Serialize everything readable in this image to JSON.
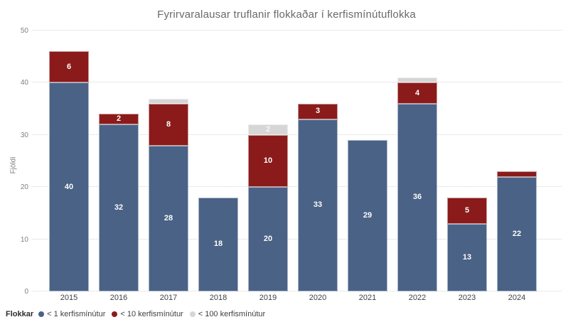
{
  "chart_data": {
    "type": "bar",
    "stacked": true,
    "title": "Fyrirvaralausar truflanir flokkaðar í kerfismínútuflokka",
    "xlabel": "",
    "ylabel": "Fjöldi",
    "ylim": [
      0,
      50
    ],
    "yticks": [
      0,
      10,
      20,
      30,
      40,
      50
    ],
    "grid": "dotted-horizontal",
    "categories": [
      "2015",
      "2016",
      "2017",
      "2018",
      "2019",
      "2020",
      "2021",
      "2022",
      "2023",
      "2024"
    ],
    "series": [
      {
        "name": "< 1 kerfismínútur",
        "color": "#4a6286",
        "values": [
          40,
          32,
          28,
          18,
          20,
          33,
          29,
          36,
          13,
          22
        ]
      },
      {
        "name": "< 10 kerfismínútur",
        "color": "#8b1b1b",
        "values": [
          6,
          2,
          8,
          0,
          10,
          3,
          0,
          4,
          5,
          1
        ]
      },
      {
        "name": "< 100 kerfismínútur",
        "color": "#d6d6d6",
        "values": [
          0,
          0,
          1,
          0,
          2,
          0,
          0,
          1,
          0,
          0
        ]
      }
    ],
    "totals": [
      46,
      34,
      37,
      18,
      32,
      36,
      29,
      41,
      18,
      23
    ],
    "data_label_min": 2,
    "data_label_color": "#ffffff",
    "legend_title": "Flokkar",
    "legend_position": "bottom-left"
  },
  "style_colors": {
    "background": "#ffffff",
    "title_text": "#6a6a6a",
    "axis_text": "#808080",
    "category_text": "#404040",
    "gridline": "#d4d4d4"
  }
}
